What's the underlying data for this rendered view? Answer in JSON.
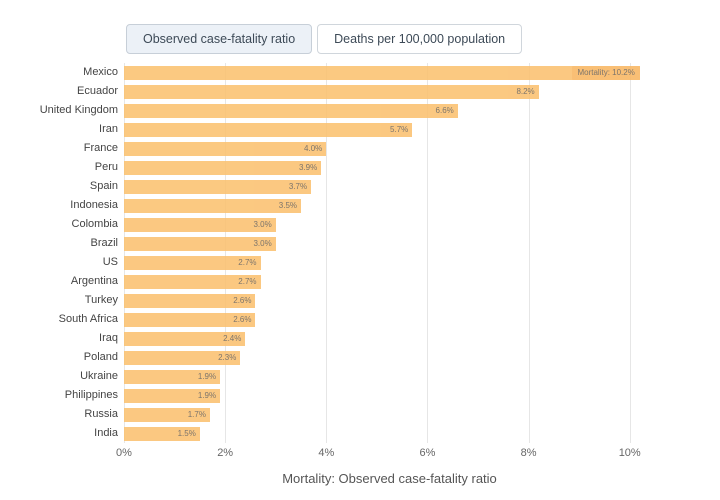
{
  "tabs": [
    {
      "label": "Observed case-fatality ratio",
      "active": true
    },
    {
      "label": "Deaths per 100,000 population",
      "active": false
    }
  ],
  "chart_data": {
    "type": "bar",
    "orientation": "horizontal",
    "title": "",
    "xlabel": "Mortality: Observed case-fatality ratio",
    "ylabel": "",
    "categories": [
      "Mexico",
      "Ecuador",
      "United Kingdom",
      "Iran",
      "France",
      "Peru",
      "Spain",
      "Indonesia",
      "Colombia",
      "Brazil",
      "US",
      "Argentina",
      "Turkey",
      "South Africa",
      "Iraq",
      "Poland",
      "Ukraine",
      "Philippines",
      "Russia",
      "India"
    ],
    "values": [
      10.2,
      8.2,
      6.6,
      5.7,
      4.0,
      3.9,
      3.7,
      3.5,
      3.0,
      3.0,
      2.7,
      2.7,
      2.6,
      2.6,
      2.4,
      2.3,
      1.9,
      1.9,
      1.7,
      1.5
    ],
    "value_labels": [
      "Mortality: 10.2%",
      "8.2%",
      "6.6%",
      "5.7%",
      "4.0%",
      "3.9%",
      "3.7%",
      "3.5%",
      "3.0%",
      "3.0%",
      "2.7%",
      "2.7%",
      "2.6%",
      "2.6%",
      "2.4%",
      "2.3%",
      "1.9%",
      "1.9%",
      "1.7%",
      "1.5%"
    ],
    "highlight_index": 0,
    "x_ticks": [
      "0%",
      "2%",
      "4%",
      "6%",
      "8%",
      "10%"
    ],
    "xlim": [
      0,
      10.5
    ],
    "grid": true,
    "legend": "none",
    "bar_color": "#fbc170",
    "highlight_label_bg": "#f9b763",
    "gridline_color": "#e6e6e6"
  }
}
